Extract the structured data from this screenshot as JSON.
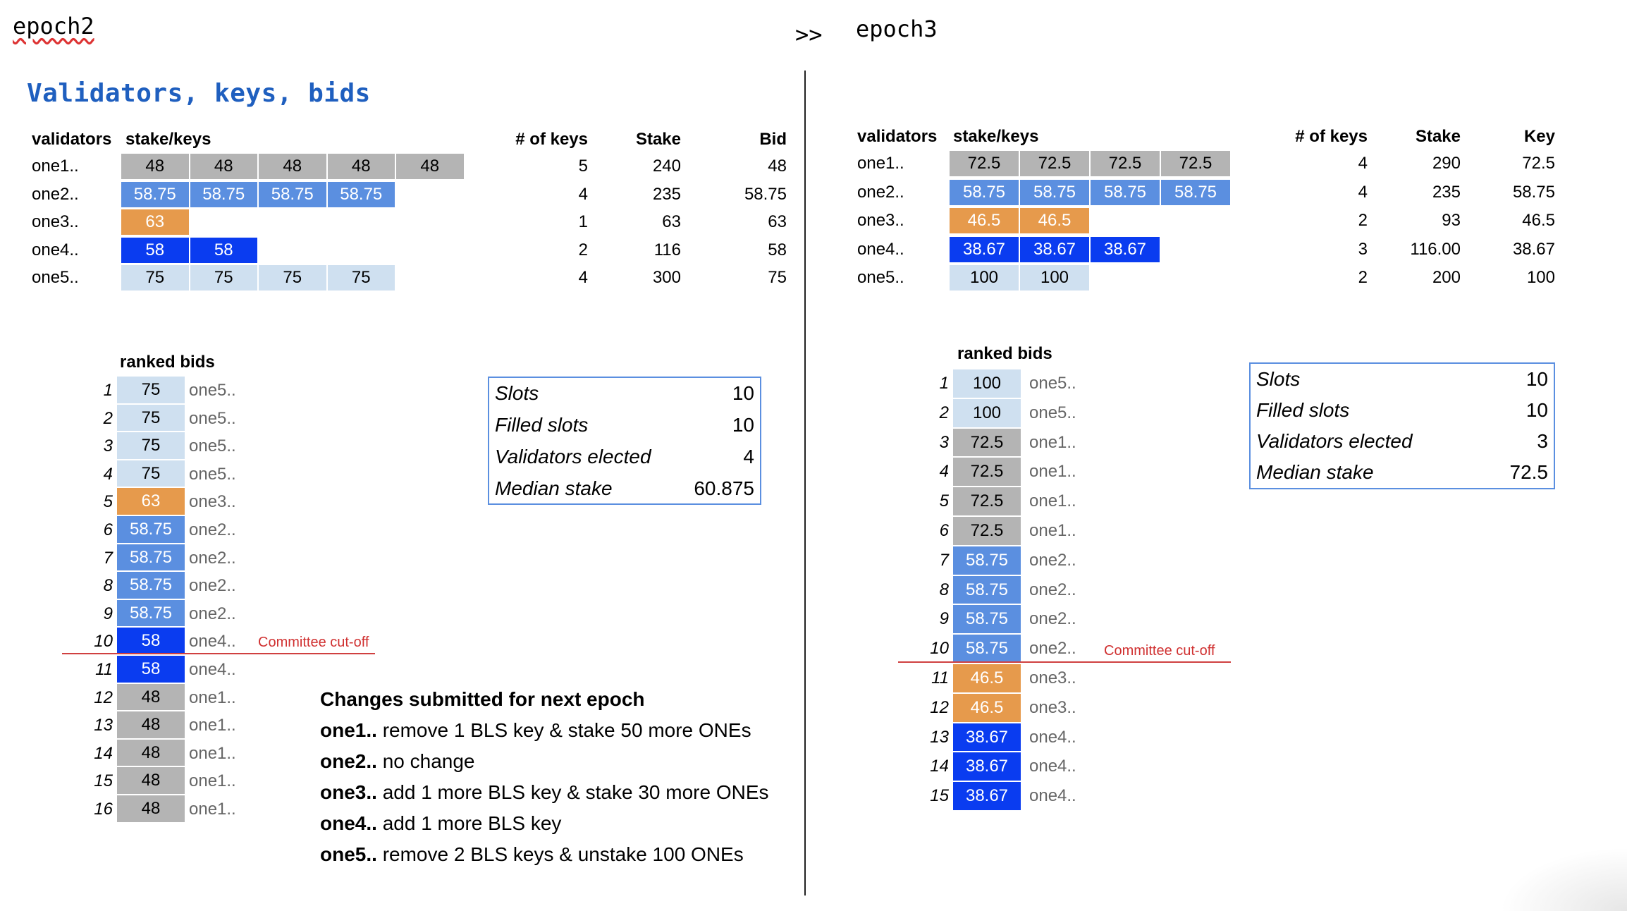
{
  "header": {
    "left": "epoch2",
    "arrow": ">>",
    "right": "epoch3"
  },
  "title": "Validators, keys, bids",
  "colors": {
    "gray": "#b4b4b4",
    "blue": "#5b8fe0",
    "orange": "#e69a4c",
    "dark_blue": "#0a3cf0",
    "light_blue": "#cfe0f0",
    "accent_title": "#1f5fbf",
    "cutoff_red": "#d03030"
  },
  "epoch2": {
    "headers": {
      "validators": "validators",
      "stake_keys": "stake/keys",
      "num_keys": "# of keys",
      "stake": "Stake",
      "bid": "Bid"
    },
    "rows": [
      {
        "name": "one1..",
        "keys": [
          "48",
          "48",
          "48",
          "48",
          "48"
        ],
        "color": "gray",
        "num_keys": "5",
        "stake": "240",
        "bid": "48"
      },
      {
        "name": "one2..",
        "keys": [
          "58.75",
          "58.75",
          "58.75",
          "58.75"
        ],
        "color": "blue",
        "num_keys": "4",
        "stake": "235",
        "bid": "58.75"
      },
      {
        "name": "one3..",
        "keys": [
          "63"
        ],
        "color": "orange",
        "num_keys": "1",
        "stake": "63",
        "bid": "63"
      },
      {
        "name": "one4..",
        "keys": [
          "58",
          "58"
        ],
        "color": "dark_blue",
        "num_keys": "2",
        "stake": "116",
        "bid": "58"
      },
      {
        "name": "one5..",
        "keys": [
          "75",
          "75",
          "75",
          "75"
        ],
        "color": "light_blue",
        "num_keys": "4",
        "stake": "300",
        "bid": "75"
      }
    ],
    "ranked_title": "ranked bids",
    "ranked": [
      {
        "rank": "1",
        "bid": "75",
        "name": "one5..",
        "color": "light_blue"
      },
      {
        "rank": "2",
        "bid": "75",
        "name": "one5..",
        "color": "light_blue"
      },
      {
        "rank": "3",
        "bid": "75",
        "name": "one5..",
        "color": "light_blue"
      },
      {
        "rank": "4",
        "bid": "75",
        "name": "one5..",
        "color": "light_blue"
      },
      {
        "rank": "5",
        "bid": "63",
        "name": "one3..",
        "color": "orange"
      },
      {
        "rank": "6",
        "bid": "58.75",
        "name": "one2..",
        "color": "blue"
      },
      {
        "rank": "7",
        "bid": "58.75",
        "name": "one2..",
        "color": "blue"
      },
      {
        "rank": "8",
        "bid": "58.75",
        "name": "one2..",
        "color": "blue"
      },
      {
        "rank": "9",
        "bid": "58.75",
        "name": "one2..",
        "color": "blue"
      },
      {
        "rank": "10",
        "bid": "58",
        "name": "one4..",
        "color": "dark_blue"
      },
      {
        "rank": "11",
        "bid": "58",
        "name": "one4..",
        "color": "dark_blue"
      },
      {
        "rank": "12",
        "bid": "48",
        "name": "one1..",
        "color": "gray"
      },
      {
        "rank": "13",
        "bid": "48",
        "name": "one1..",
        "color": "gray"
      },
      {
        "rank": "14",
        "bid": "48",
        "name": "one1..",
        "color": "gray"
      },
      {
        "rank": "15",
        "bid": "48",
        "name": "one1..",
        "color": "gray"
      },
      {
        "rank": "16",
        "bid": "48",
        "name": "one1..",
        "color": "gray"
      }
    ],
    "cutoff_label": "Committee cut-off",
    "stats": [
      {
        "label": "Slots",
        "value": "10"
      },
      {
        "label": "Filled slots",
        "value": "10"
      },
      {
        "label": "Validators elected",
        "value": "4"
      },
      {
        "label": "Median stake",
        "value": "60.875"
      }
    ],
    "changes_title": "Changes submitted for next epoch",
    "changes": [
      {
        "who": "one1..",
        "what": " remove 1 BLS key & stake 50 more ONEs"
      },
      {
        "who": "one2..",
        "what": " no change"
      },
      {
        "who": "one3..",
        "what": " add 1 more BLS key & stake 30 more ONEs"
      },
      {
        "who": "one4..",
        "what": " add 1 more BLS key"
      },
      {
        "who": "one5..",
        "what": " remove 2 BLS keys & unstake 100 ONEs"
      }
    ]
  },
  "epoch3": {
    "headers": {
      "validators": "validators",
      "stake_keys": "stake/keys",
      "num_keys": "# of keys",
      "stake": "Stake",
      "key": "Key"
    },
    "rows": [
      {
        "name": "one1..",
        "keys": [
          "72.5",
          "72.5",
          "72.5",
          "72.5"
        ],
        "color": "gray",
        "num_keys": "4",
        "stake": "290",
        "key": "72.5"
      },
      {
        "name": "one2..",
        "keys": [
          "58.75",
          "58.75",
          "58.75",
          "58.75"
        ],
        "color": "blue",
        "num_keys": "4",
        "stake": "235",
        "key": "58.75"
      },
      {
        "name": "one3..",
        "keys": [
          "46.5",
          "46.5"
        ],
        "color": "orange",
        "num_keys": "2",
        "stake": "93",
        "key": "46.5"
      },
      {
        "name": "one4..",
        "keys": [
          "38.67",
          "38.67",
          "38.67"
        ],
        "color": "dark_blue",
        "num_keys": "3",
        "stake": "116.00",
        "key": "38.67"
      },
      {
        "name": "one5..",
        "keys": [
          "100",
          "100"
        ],
        "color": "light_blue",
        "num_keys": "2",
        "stake": "200",
        "key": "100"
      }
    ],
    "ranked_title": "ranked bids",
    "ranked": [
      {
        "rank": "1",
        "bid": "100",
        "name": "one5..",
        "color": "light_blue"
      },
      {
        "rank": "2",
        "bid": "100",
        "name": "one5..",
        "color": "light_blue"
      },
      {
        "rank": "3",
        "bid": "72.5",
        "name": "one1..",
        "color": "gray"
      },
      {
        "rank": "4",
        "bid": "72.5",
        "name": "one1..",
        "color": "gray"
      },
      {
        "rank": "5",
        "bid": "72.5",
        "name": "one1..",
        "color": "gray"
      },
      {
        "rank": "6",
        "bid": "72.5",
        "name": "one1..",
        "color": "gray"
      },
      {
        "rank": "7",
        "bid": "58.75",
        "name": "one2..",
        "color": "blue"
      },
      {
        "rank": "8",
        "bid": "58.75",
        "name": "one2..",
        "color": "blue"
      },
      {
        "rank": "9",
        "bid": "58.75",
        "name": "one2..",
        "color": "blue"
      },
      {
        "rank": "10",
        "bid": "58.75",
        "name": "one2..",
        "color": "blue"
      },
      {
        "rank": "11",
        "bid": "46.5",
        "name": "one3..",
        "color": "orange"
      },
      {
        "rank": "12",
        "bid": "46.5",
        "name": "one3..",
        "color": "orange"
      },
      {
        "rank": "13",
        "bid": "38.67",
        "name": "one4..",
        "color": "dark_blue"
      },
      {
        "rank": "14",
        "bid": "38.67",
        "name": "one4..",
        "color": "dark_blue"
      },
      {
        "rank": "15",
        "bid": "38.67",
        "name": "one4..",
        "color": "dark_blue"
      }
    ],
    "cutoff_label": "Committee cut-off",
    "stats": [
      {
        "label": "Slots",
        "value": "10"
      },
      {
        "label": "Filled slots",
        "value": "10"
      },
      {
        "label": "Validators elected",
        "value": "3"
      },
      {
        "label": "Median stake",
        "value": "72.5"
      }
    ]
  }
}
